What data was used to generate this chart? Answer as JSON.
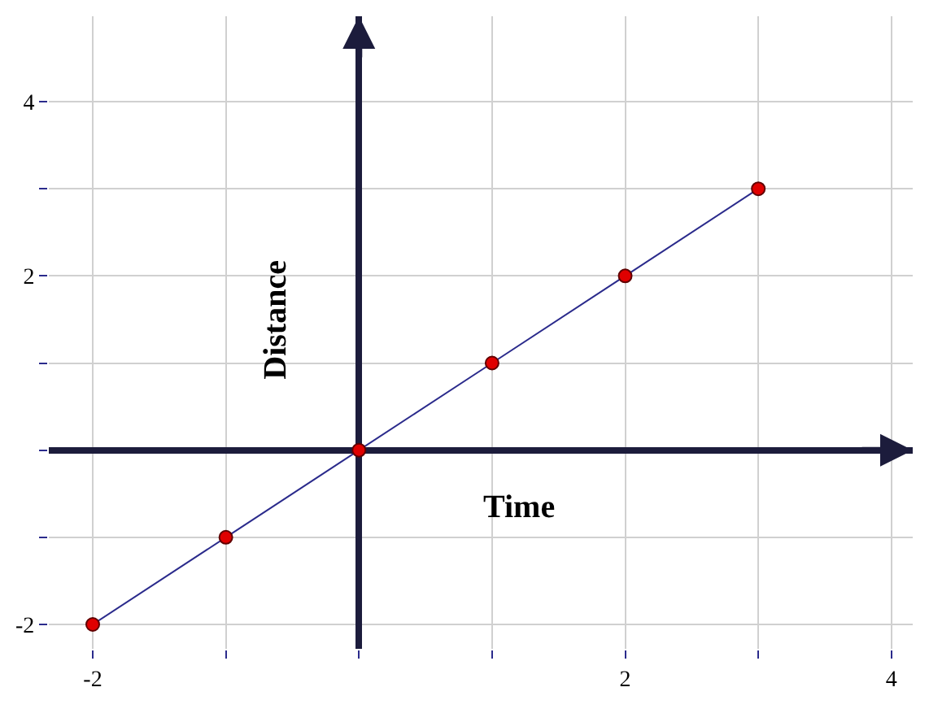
{
  "chart_data": {
    "type": "line",
    "xlabel": "Time",
    "ylabel": "Distance",
    "x": [
      -2,
      -1,
      0,
      1,
      2,
      3
    ],
    "series": [
      {
        "color": "#2b2b8c",
        "values": [
          -2,
          -1,
          0,
          1,
          2,
          3
        ],
        "colors": [
          "#e00000",
          "#e00000",
          "#e00000",
          "#e00000",
          "#e00000",
          "#e00000"
        ]
      }
    ],
    "xlim": [
      -2.33,
      4.16
    ],
    "ylim": [
      -2.28,
      4.98
    ],
    "xticks": [
      -2,
      {
        "value": -1,
        "label": null
      },
      {
        "value": 0,
        "label": null
      },
      {
        "value": 1,
        "label": null
      },
      2,
      {
        "value": 3,
        "label": null
      },
      4
    ],
    "yticks": [
      -2,
      {
        "value": -1,
        "label": null
      },
      {
        "value": 0,
        "label": null
      },
      {
        "value": 1,
        "label": null
      },
      2,
      {
        "value": 3,
        "label": null
      },
      4
    ],
    "grid": true,
    "marker": "circle",
    "line_style": "solid",
    "legend": false
  }
}
